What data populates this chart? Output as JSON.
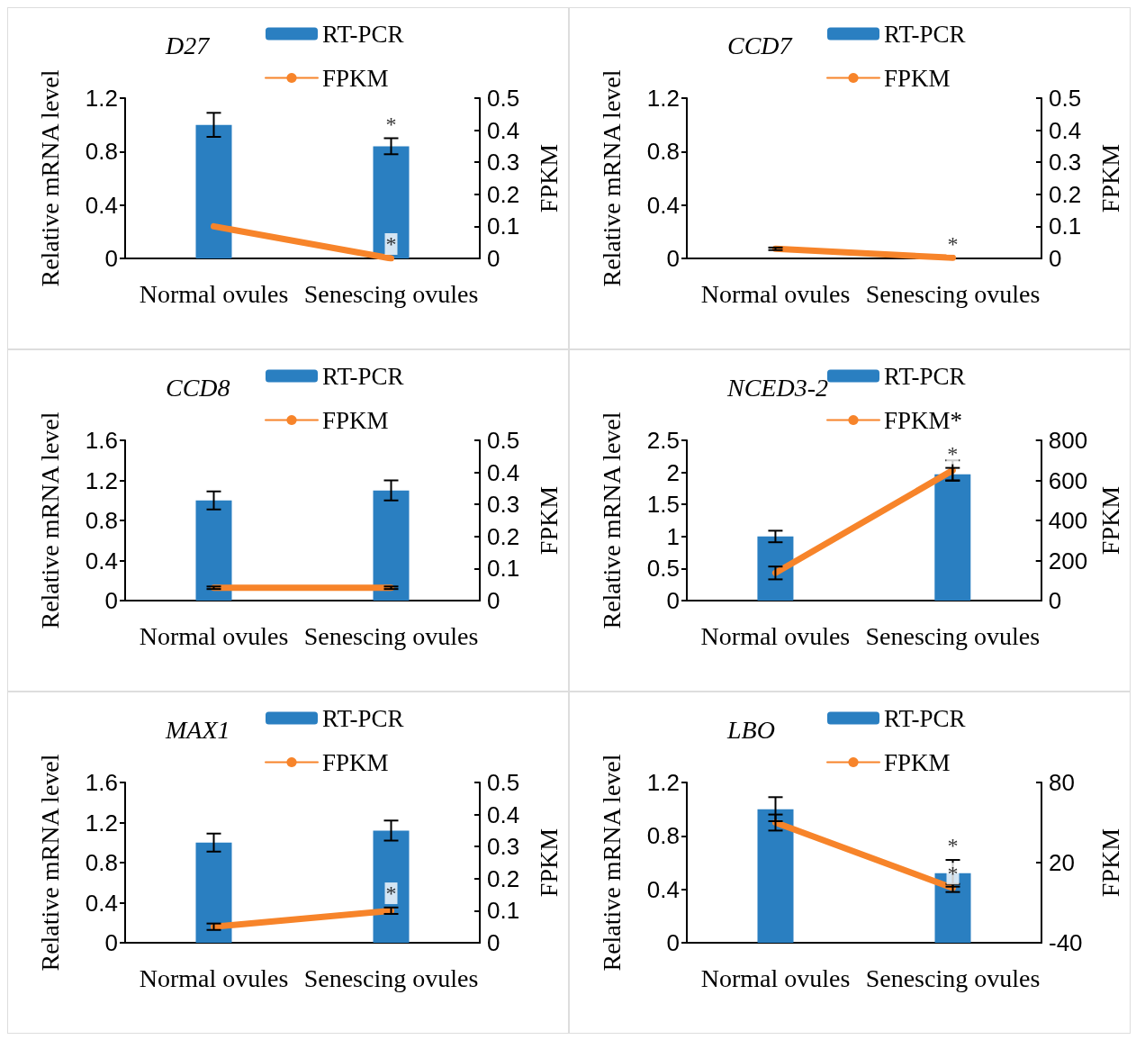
{
  "chart_data": [
    {
      "type": "bar",
      "title": "D27",
      "ylabel": "Relative mRNA level",
      "y2label": "FPKM",
      "categories": [
        "Normal ovules",
        "Senescing ovules"
      ],
      "ylim": [
        0,
        1.2
      ],
      "yticks": [
        0,
        0.4,
        0.8,
        1.2
      ],
      "y2lim": [
        0,
        0.5
      ],
      "y2ticks": [
        0,
        0.1,
        0.2,
        0.3,
        0.4,
        0.5
      ],
      "legend": "top",
      "grid": false,
      "marker": "none",
      "series": [
        {
          "name": "RT-PCR",
          "color": "#2a7fc1",
          "values": [
            1.0,
            0.84
          ],
          "errors": [
            0.09,
            0.06
          ]
        },
        {
          "name": "FPKM",
          "type": "line",
          "axis": "y2",
          "color": "#f7842a",
          "values": [
            0.1,
            0.0
          ]
        }
      ],
      "annotations": [
        {
          "text": "*",
          "x": "Senescing ovules",
          "y": 0.9
        },
        {
          "text": "*",
          "x": "Senescing ovules",
          "y": 0
        }
      ]
    },
    {
      "type": "bar",
      "title": "CCD7",
      "ylabel": "Relative mRNA level",
      "y2label": "FPKM",
      "categories": [
        "Normal ovules",
        "Senescing ovules"
      ],
      "ylim": [
        0,
        1.2
      ],
      "yticks": [
        0,
        0.4,
        0.8,
        1.2
      ],
      "y2lim": [
        0,
        0.5
      ],
      "y2ticks": [
        0,
        0.1,
        0.2,
        0.3,
        0.4,
        0.5
      ],
      "legend": "top",
      "grid": false,
      "marker": "none",
      "series": [
        {
          "name": "RT-PCR",
          "color": "#2a7fc1",
          "values": [
            null,
            null
          ]
        },
        {
          "name": "FPKM",
          "type": "line",
          "axis": "y2",
          "color": "#f7842a",
          "values": [
            0.03,
            0.002
          ],
          "errors": [
            0.004,
            null
          ]
        }
      ],
      "annotations": [
        {
          "text": "*",
          "x": "Senescing ovules",
          "y": 0
        }
      ]
    },
    {
      "type": "bar",
      "title": "CCD8",
      "ylabel": "Relative mRNA level",
      "y2label": "FPKM",
      "categories": [
        "Normal ovules",
        "Senescing ovules"
      ],
      "ylim": [
        0,
        1.6
      ],
      "yticks": [
        0,
        0.4,
        0.8,
        1.2,
        1.6
      ],
      "y2lim": [
        0,
        0.5
      ],
      "y2ticks": [
        0,
        0.1,
        0.2,
        0.3,
        0.4,
        0.5
      ],
      "legend": "top",
      "grid": false,
      "marker": "none",
      "series": [
        {
          "name": "RT-PCR",
          "color": "#2a7fc1",
          "values": [
            1.0,
            1.1
          ],
          "errors": [
            0.09,
            0.1
          ]
        },
        {
          "name": "FPKM",
          "type": "line",
          "axis": "y2",
          "color": "#f7842a",
          "values": [
            0.04,
            0.04
          ],
          "errors": [
            0.004,
            0.004
          ]
        }
      ]
    },
    {
      "type": "bar",
      "title": "NCED3-2",
      "ylabel": "Relative mRNA level",
      "y2label": "FPKM",
      "categories": [
        "Normal ovules",
        "Senescing ovules"
      ],
      "ylim": [
        0,
        2.5
      ],
      "yticks": [
        0,
        0.5,
        1,
        1.5,
        2,
        2.5
      ],
      "y2lim": [
        0,
        800
      ],
      "y2ticks": [
        0,
        200,
        400,
        600,
        800
      ],
      "legend": "top",
      "grid": false,
      "marker": "none",
      "series": [
        {
          "name": "RT-PCR",
          "color": "#2a7fc1",
          "values": [
            1.0,
            1.97
          ],
          "errors": [
            0.09,
            0.1
          ]
        },
        {
          "name": "FPKM*",
          "type": "line",
          "axis": "y2",
          "color": "#f7842a",
          "values": [
            138,
            650
          ],
          "errors": [
            32,
            50
          ]
        }
      ],
      "annotations": [
        {
          "text": "*",
          "x": "Senescing ovules",
          "y": 2.07
        }
      ]
    },
    {
      "type": "bar",
      "title": "MAX1",
      "ylabel": "Relative mRNA level",
      "y2label": "FPKM",
      "categories": [
        "Normal ovules",
        "Senescing ovules"
      ],
      "ylim": [
        0,
        1.6
      ],
      "yticks": [
        0,
        0.4,
        0.8,
        1.2,
        1.6
      ],
      "y2lim": [
        0,
        0.5
      ],
      "y2ticks": [
        0,
        0.1,
        0.2,
        0.3,
        0.4,
        0.5
      ],
      "legend": "top",
      "grid": false,
      "marker": "none",
      "series": [
        {
          "name": "RT-PCR",
          "color": "#2a7fc1",
          "values": [
            1.0,
            1.12
          ],
          "errors": [
            0.09,
            0.1
          ]
        },
        {
          "name": "FPKM",
          "type": "line",
          "axis": "y2",
          "color": "#f7842a",
          "values": [
            0.05,
            0.1
          ],
          "errors": [
            0.01,
            0.01
          ]
        }
      ],
      "annotations": [
        {
          "text": "*",
          "x": "Senescing ovules",
          "y": 0.35
        }
      ]
    },
    {
      "type": "bar",
      "title": "LBO",
      "ylabel": "Relative mRNA level",
      "y2label": "FPKM",
      "categories": [
        "Normal ovules",
        "Senescing ovules"
      ],
      "ylim": [
        0,
        1.2
      ],
      "yticks": [
        0,
        0.4,
        0.8,
        1.2
      ],
      "y2lim": [
        -40,
        80
      ],
      "y2ticks": [
        -40,
        20,
        80
      ],
      "legend": "top",
      "grid": false,
      "marker": "none",
      "series": [
        {
          "name": "RT-PCR",
          "color": "#2a7fc1",
          "values": [
            1.0,
            0.52
          ],
          "errors": [
            0.09,
            0.1
          ]
        },
        {
          "name": "FPKM",
          "type": "line",
          "axis": "y2",
          "color": "#f7842a",
          "values": [
            50,
            1
          ],
          "errors": [
            6,
            3
          ]
        }
      ],
      "annotations": [
        {
          "text": "*",
          "x": "Senescing ovules",
          "y": 0.62
        },
        {
          "text": "*",
          "x": "Senescing ovules",
          "y": 0.41
        }
      ]
    }
  ]
}
